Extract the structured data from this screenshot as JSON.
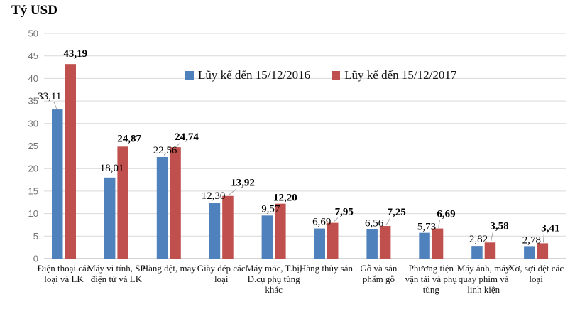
{
  "title": "Tỷ USD",
  "legend": {
    "items": [
      {
        "label": "Lũy kế đến 15/12/2016",
        "color": "#4F81BD"
      },
      {
        "label": "Lũy kế đến 15/12/2017",
        "color": "#C0504D"
      }
    ]
  },
  "colors": {
    "series_2016": "#4F81BD",
    "series_2017": "#C0504D",
    "gridline": "#D9D9D9",
    "axis_line": "#ABABAB",
    "leader_line": "#A6A6A6",
    "ytick_text": "#737373",
    "label_text": "#000000"
  },
  "chart_data": {
    "type": "bar",
    "title": "Tỷ USD",
    "xlabel": "",
    "ylabel": "Tỷ USD",
    "ylim": [
      0,
      50
    ],
    "yticks": [
      0,
      5,
      10,
      15,
      20,
      25,
      30,
      35,
      40,
      45,
      50
    ],
    "grid": true,
    "legend_position": "inside-top-center",
    "categories": [
      "Điện thoại các loại và LK",
      "Máy vi tính, SP điện tử và LK",
      "Hàng dệt, may",
      "Giày dép các loại",
      "Máy móc, T.bị, D.cụ phụ tùng khác",
      "Hàng thủy sản",
      "Gỗ và sản phẩm gỗ",
      "Phương tiện vận tải và phụ tùng",
      "Máy ảnh, máy quay phim và linh kiện",
      "Xơ, sợi dệt các loại"
    ],
    "series": [
      {
        "name": "Lũy kế đến 15/12/2016",
        "color": "#4F81BD",
        "values": [
          33.11,
          18.01,
          22.56,
          12.3,
          9.57,
          6.69,
          6.56,
          5.73,
          2.82,
          2.78
        ],
        "value_labels": [
          "33,11",
          "18,01",
          "22,56",
          "12,30",
          "9,57",
          "6,69",
          "6,56",
          "5,73",
          "2,82",
          "2,78"
        ]
      },
      {
        "name": "Lũy kế đến 15/12/2017",
        "color": "#C0504D",
        "values": [
          43.19,
          24.87,
          24.74,
          13.92,
          12.2,
          7.95,
          7.25,
          6.69,
          3.58,
          3.41
        ],
        "value_labels": [
          "43,19",
          "24,87",
          "24,74",
          "13,92",
          "12,20",
          "7,95",
          "7,25",
          "6,69",
          "3,58",
          "3,41"
        ]
      }
    ]
  }
}
